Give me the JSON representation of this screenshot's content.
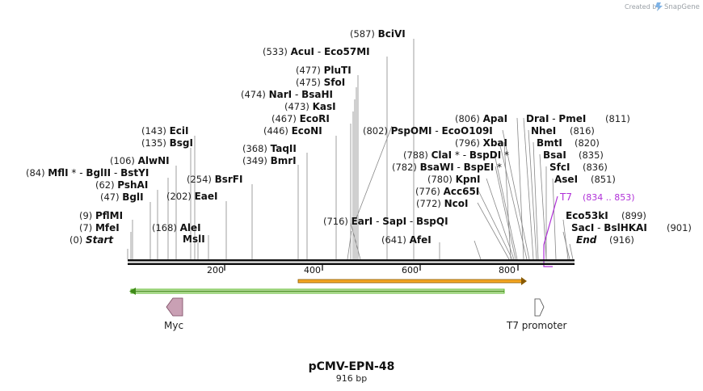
{
  "credit": {
    "prefix": "Created by",
    "brand": "SnapGene"
  },
  "plasmid": {
    "name": "pCMV-EPN-48",
    "length": "916 bp",
    "bp": 916
  },
  "axis": {
    "ticks": [
      "200",
      "400",
      "600",
      "800"
    ]
  },
  "sites": [
    {
      "label_pos": "(587)",
      "parts": [
        {
          "t": "BciVI",
          "b": true
        }
      ]
    },
    {
      "label_pos": "(533)",
      "parts": [
        {
          "t": "AcuI",
          "b": true
        },
        {
          "t": "  - ",
          "b": false
        },
        {
          "t": "Eco57MI",
          "b": true
        }
      ]
    },
    {
      "label_pos": "(477)",
      "parts": [
        {
          "t": "PluTI",
          "b": true
        }
      ]
    },
    {
      "label_pos": "(475)",
      "parts": [
        {
          "t": "SfoI",
          "b": true
        }
      ]
    },
    {
      "label_pos": "(474)",
      "parts": [
        {
          "t": "NarI",
          "b": true
        },
        {
          "t": "  - ",
          "b": false
        },
        {
          "t": "BsaHI",
          "b": true
        }
      ]
    },
    {
      "label_pos": "(473)",
      "parts": [
        {
          "t": "KasI",
          "b": true
        }
      ]
    },
    {
      "label_pos": "(467)",
      "parts": [
        {
          "t": "EcoRI",
          "b": true
        }
      ]
    },
    {
      "label_pos": "(446)",
      "parts": [
        {
          "t": "EcoNI",
          "b": true
        }
      ]
    },
    {
      "label_pos": "(368)",
      "parts": [
        {
          "t": "TaqII",
          "b": true
        }
      ]
    },
    {
      "label_pos": "(349)",
      "parts": [
        {
          "t": "BmrI",
          "b": true
        }
      ]
    },
    {
      "label_pos": "(254)",
      "parts": [
        {
          "t": "BsrFI",
          "b": true
        }
      ]
    },
    {
      "label_pos": "(202)",
      "parts": [
        {
          "t": "EaeI",
          "b": true
        }
      ]
    },
    {
      "label_pos": "(168)",
      "parts": [
        {
          "t": "AleI",
          "b": true
        }
      ]
    },
    {
      "label_pos": "",
      "parts": [
        {
          "t": "MslI",
          "b": true
        }
      ]
    },
    {
      "label_pos": "(143)",
      "parts": [
        {
          "t": "EciI",
          "b": true
        }
      ]
    },
    {
      "label_pos": "(135)",
      "parts": [
        {
          "t": "BsgI",
          "b": true
        }
      ]
    },
    {
      "label_pos": "(106)",
      "parts": [
        {
          "t": "AlwNI",
          "b": true
        }
      ]
    },
    {
      "label_pos": "(84)",
      "parts": [
        {
          "t": "MflI",
          "b": true
        },
        {
          "t": " * - ",
          "b": false
        },
        {
          "t": "BglII",
          "b": true
        },
        {
          "t": "  - ",
          "b": false
        },
        {
          "t": "BstYI",
          "b": true
        }
      ]
    },
    {
      "label_pos": "(62)",
      "parts": [
        {
          "t": "PshAI",
          "b": true
        }
      ]
    },
    {
      "label_pos": "(47)",
      "parts": [
        {
          "t": "BglI",
          "b": true
        }
      ]
    },
    {
      "label_pos": "(9)",
      "parts": [
        {
          "t": "PflMI",
          "b": true
        }
      ]
    },
    {
      "label_pos": "(7)",
      "parts": [
        {
          "t": "MfeI",
          "b": true
        }
      ]
    },
    {
      "label_pos": "(0)",
      "parts": [
        {
          "t": "Start",
          "b": true,
          "i": true
        }
      ]
    },
    {
      "label_pos": "(716)",
      "parts": [
        {
          "t": "EarI",
          "b": true
        },
        {
          "t": "  - ",
          "b": false
        },
        {
          "t": "SapI",
          "b": true
        },
        {
          "t": "  - ",
          "b": false
        },
        {
          "t": "BspQI",
          "b": true
        }
      ]
    },
    {
      "label_pos": "(641)",
      "parts": [
        {
          "t": "AfeI",
          "b": true
        }
      ]
    },
    {
      "label_pos": "(802)",
      "parts": [
        {
          "t": "PspOMI",
          "b": true
        },
        {
          "t": "  - ",
          "b": false
        },
        {
          "t": "EcoO109I",
          "b": true
        }
      ]
    },
    {
      "label_pos": "(788)",
      "parts": [
        {
          "t": "ClaI",
          "b": true
        },
        {
          "t": " * - ",
          "b": false
        },
        {
          "t": "BspDI",
          "b": true
        },
        {
          "t": " *",
          "b": false
        }
      ]
    },
    {
      "label_pos": "(782)",
      "parts": [
        {
          "t": "BsaWI",
          "b": true
        },
        {
          "t": "  - ",
          "b": false
        },
        {
          "t": "BspEI",
          "b": true
        },
        {
          "t": " *",
          "b": false
        }
      ]
    },
    {
      "label_pos": "(780)",
      "parts": [
        {
          "t": "KpnI",
          "b": true
        }
      ]
    },
    {
      "label_pos": "(776)",
      "parts": [
        {
          "t": "Acc65I",
          "b": true
        }
      ]
    },
    {
      "label_pos": "(772)",
      "parts": [
        {
          "t": "NcoI",
          "b": true
        }
      ]
    },
    {
      "label_pos": "(806)",
      "parts": [
        {
          "t": "ApaI",
          "b": true
        }
      ]
    },
    {
      "label_pos": "(796)",
      "parts": [
        {
          "t": "XbaI",
          "b": true
        }
      ]
    },
    {
      "label_pos": "(811)",
      "parts": [
        {
          "t": "DraI",
          "b": true
        },
        {
          "t": "  - ",
          "b": false
        },
        {
          "t": "PmeI",
          "b": true
        }
      ]
    },
    {
      "label_pos": "(816)",
      "parts": [
        {
          "t": "NheI",
          "b": true
        }
      ]
    },
    {
      "label_pos": "(820)",
      "parts": [
        {
          "t": "BmtI",
          "b": true
        }
      ]
    },
    {
      "label_pos": "(835)",
      "parts": [
        {
          "t": "BsaI",
          "b": true
        }
      ]
    },
    {
      "label_pos": "(836)",
      "parts": [
        {
          "t": "SfcI",
          "b": true
        }
      ]
    },
    {
      "label_pos": "(851)",
      "parts": [
        {
          "t": "AseI",
          "b": true
        }
      ]
    },
    {
      "label_pos": "(899)",
      "parts": [
        {
          "t": "Eco53kI",
          "b": true
        }
      ]
    },
    {
      "label_pos": "(901)",
      "parts": [
        {
          "t": "SacI",
          "b": true
        },
        {
          "t": "  - ",
          "b": false
        },
        {
          "t": "BslHKAI",
          "b": true
        }
      ]
    },
    {
      "label_pos": "(916)",
      "parts": [
        {
          "t": "End",
          "b": true,
          "i": true
        }
      ]
    }
  ],
  "t7": {
    "label": "T7",
    "range": "(834 .. 853)"
  },
  "features": {
    "myc": "Myc",
    "t7promoter": "T7 promoter"
  },
  "colors": {
    "t7": "#b031d8",
    "orange": "#f5a623",
    "green": "#5cb82e",
    "myc": "#c9a0b4"
  }
}
